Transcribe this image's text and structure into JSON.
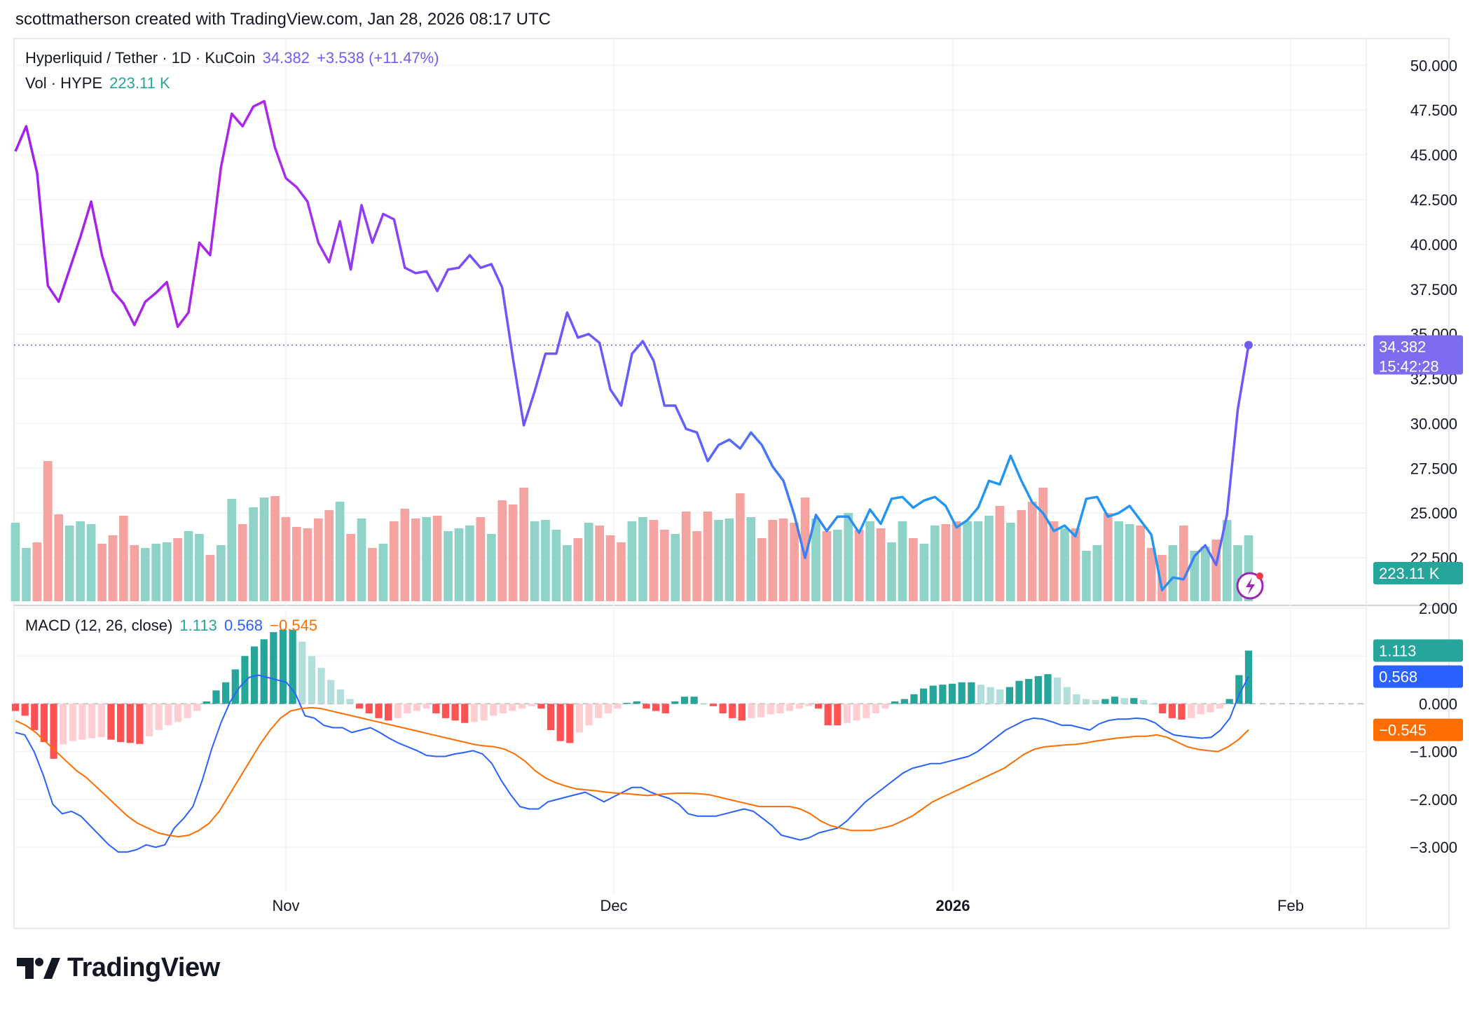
{
  "credit": "scottmatherson created with TradingView.com, Jan 28, 2026 08:17 UTC",
  "legend": {
    "symbol": "Hyperliquid / Tether · 1D · KuCoin",
    "price": "34.382",
    "change": "+3.538 (+11.47%)",
    "vol_label": "Vol · HYPE",
    "vol_value": "223.11 K",
    "macd_label": "MACD (12, 26, close)",
    "macd_hist": "1.113",
    "macd_line": "0.568",
    "macd_signal": "−0.545"
  },
  "price_tag": {
    "price": "34.382",
    "countdown": "15:42:28"
  },
  "vol_tag": "223.11 K",
  "macd_tags": {
    "hist": "1.113",
    "macd": "0.568",
    "signal": "−0.545"
  },
  "brand": "TradingView",
  "colors": {
    "price_up": "#2196F3",
    "price_purple": "#7B4DFF",
    "price_magenta": "#B026E8",
    "vol_up": "#8fd3c8",
    "vol_down": "#f5a3a0",
    "hist_up_strong": "#26a69a",
    "hist_up_weak": "#b2dfdb",
    "hist_down_strong": "#ff5252",
    "hist_down_weak": "#ffcdd2",
    "macd_line": "#2962ff",
    "signal_line": "#ff6d00",
    "last_price_tag": "#7b6cf0"
  },
  "chart_data": [
    {
      "type": "line",
      "title": "Hyperliquid / Tether · 1D · KuCoin",
      "ylim": [
        20,
        51.5
      ],
      "y_ticks": [
        "50.000",
        "47.500",
        "45.000",
        "42.500",
        "40.000",
        "37.500",
        "35.000",
        "32.500",
        "30.000",
        "27.500",
        "25.000",
        "22.500"
      ],
      "x_ticks": [
        "Nov",
        "Dec",
        "2026",
        "Feb"
      ],
      "series": [
        {
          "values": [
            45.2,
            46.6,
            44.0,
            37.7,
            36.8,
            38.6,
            40.4,
            42.4,
            39.4,
            37.4,
            36.7,
            35.5,
            36.8,
            37.3,
            37.9,
            35.4,
            36.2,
            40.1,
            39.4,
            44.3,
            47.3,
            46.6,
            47.7,
            48.0,
            45.4,
            43.7,
            43.2,
            42.4,
            40.1,
            39.0,
            41.3,
            38.6,
            42.2,
            40.1,
            41.7,
            41.4,
            38.7,
            38.4,
            38.5,
            37.4,
            38.6,
            38.7,
            39.4,
            38.7,
            38.9,
            37.6,
            33.6,
            29.9,
            31.8,
            33.9,
            33.9,
            36.2,
            34.8,
            35.0,
            34.5,
            31.9,
            31.0,
            33.9,
            34.6,
            33.5,
            31.0,
            31.0,
            29.7,
            29.5,
            27.9,
            28.8,
            29.1,
            28.6,
            29.5,
            28.8,
            27.6,
            26.8,
            24.9,
            22.5,
            24.9,
            24.0,
            24.8,
            24.8,
            23.9,
            25.2,
            24.4,
            25.8,
            25.9,
            25.3,
            25.7,
            25.9,
            25.4,
            24.2,
            24.6,
            25.3,
            26.8,
            26.6,
            28.2,
            26.8,
            25.6,
            25.0,
            24.0,
            24.3,
            23.7,
            25.8,
            25.9,
            24.8,
            25.0,
            25.4,
            24.6,
            23.8,
            20.7,
            21.4,
            21.3,
            22.6,
            23.2,
            22.1,
            24.9,
            30.8,
            34.382
          ]
        }
      ]
    },
    {
      "type": "bar",
      "title": "Vol · HYPE",
      "series": [
        {
          "name": "Vol · HYPE",
          "values": [
            0.56,
            0.38,
            0.42,
            1.0,
            0.62,
            0.54,
            0.57,
            0.55,
            0.41,
            0.47,
            0.61,
            0.4,
            0.38,
            0.41,
            0.42,
            0.45,
            0.5,
            0.48,
            0.33,
            0.4,
            0.73,
            0.55,
            0.67,
            0.74,
            0.75,
            0.6,
            0.53,
            0.52,
            0.59,
            0.65,
            0.71,
            0.48,
            0.59,
            0.38,
            0.41,
            0.57,
            0.66,
            0.59,
            0.6,
            0.61,
            0.5,
            0.52,
            0.54,
            0.6,
            0.48,
            0.72,
            0.69,
            0.81,
            0.57,
            0.58,
            0.51,
            0.4,
            0.45,
            0.56,
            0.54,
            0.47,
            0.42,
            0.57,
            0.6,
            0.58,
            0.51,
            0.48,
            0.64,
            0.5,
            0.64,
            0.58,
            0.59,
            0.77,
            0.6,
            0.45,
            0.58,
            0.59,
            0.56,
            0.74,
            0.59,
            0.5,
            0.51,
            0.63,
            0.51,
            0.57,
            0.52,
            0.42,
            0.57,
            0.45,
            0.41,
            0.54,
            0.55,
            0.57,
            0.57,
            0.57,
            0.61,
            0.68,
            0.56,
            0.65,
            0.71,
            0.81,
            0.57,
            0.52,
            0.52,
            0.36,
            0.4,
            0.63,
            0.57,
            0.55,
            0.54,
            0.38,
            0.33,
            0.4,
            0.54,
            0.36,
            0.39,
            0.44,
            0.58,
            0.4,
            0.47,
            0.62,
            0.64
          ]
        }
      ],
      "ylim": [
        0,
        1
      ]
    },
    {
      "type": "bar",
      "title": "MACD (12, 26, close)",
      "ylim": [
        -3.6,
        2.0
      ],
      "y_ticks": [
        "2.000",
        "1.000",
        "0.000",
        "−1.000",
        "−2.000",
        "−3.000"
      ],
      "series": [
        {
          "name": "Histogram",
          "values": [
            -0.15,
            -0.25,
            -0.55,
            -0.8,
            -1.15,
            -0.85,
            -0.78,
            -0.75,
            -0.72,
            -0.7,
            -0.75,
            -0.8,
            -0.82,
            -0.84,
            -0.68,
            -0.55,
            -0.45,
            -0.38,
            -0.3,
            -0.15,
            0.05,
            0.28,
            0.45,
            0.72,
            1.0,
            1.2,
            1.35,
            1.5,
            1.55,
            1.55,
            1.3,
            1.0,
            0.75,
            0.5,
            0.3,
            0.1,
            -0.1,
            -0.2,
            -0.3,
            -0.35,
            -0.3,
            -0.2,
            -0.15,
            -0.1,
            -0.2,
            -0.3,
            -0.35,
            -0.4,
            -0.38,
            -0.35,
            -0.25,
            -0.2,
            -0.15,
            -0.1,
            -0.05,
            -0.1,
            -0.55,
            -0.78,
            -0.82,
            -0.6,
            -0.45,
            -0.3,
            -0.2,
            -0.1,
            0.02,
            0.05,
            -0.1,
            -0.15,
            -0.2,
            0.05,
            0.15,
            0.15,
            0.0,
            -0.05,
            -0.2,
            -0.3,
            -0.35,
            -0.3,
            -0.28,
            -0.22,
            -0.2,
            -0.15,
            -0.1,
            -0.05,
            -0.1,
            -0.45,
            -0.45,
            -0.4,
            -0.35,
            -0.3,
            -0.2,
            -0.1,
            0.05,
            0.1,
            0.2,
            0.32,
            0.38,
            0.4,
            0.42,
            0.45,
            0.45,
            0.4,
            0.35,
            0.3,
            0.35,
            0.48,
            0.52,
            0.58,
            0.62,
            0.55,
            0.35,
            0.2,
            0.1,
            0.08,
            0.1,
            0.15,
            0.12,
            0.12,
            0.08,
            0.0,
            -0.2,
            -0.3,
            -0.33,
            -0.3,
            -0.22,
            -0.18,
            -0.1,
            0.1,
            0.6,
            1.113
          ]
        },
        {
          "name": "MACD",
          "values": [
            -0.6,
            -0.65,
            -1.0,
            -1.5,
            -2.1,
            -2.3,
            -2.25,
            -2.35,
            -2.55,
            -2.75,
            -2.95,
            -3.1,
            -3.1,
            -3.05,
            -2.95,
            -3.0,
            -2.95,
            -2.6,
            -2.4,
            -2.15,
            -1.6,
            -0.95,
            -0.4,
            0.05,
            0.35,
            0.55,
            0.6,
            0.55,
            0.5,
            0.45,
            0.2,
            -0.25,
            -0.3,
            -0.45,
            -0.5,
            -0.5,
            -0.6,
            -0.55,
            -0.5,
            -0.6,
            -0.72,
            -0.82,
            -0.9,
            -0.98,
            -1.08,
            -1.1,
            -1.1,
            -1.05,
            -1.02,
            -0.98,
            -1.05,
            -1.25,
            -1.6,
            -1.9,
            -2.15,
            -2.2,
            -2.2,
            -2.05,
            -2.0,
            -1.95,
            -1.9,
            -1.85,
            -1.95,
            -2.05,
            -1.95,
            -1.85,
            -1.75,
            -1.75,
            -1.85,
            -1.92,
            -1.98,
            -2.1,
            -2.3,
            -2.35,
            -2.35,
            -2.35,
            -2.3,
            -2.25,
            -2.2,
            -2.25,
            -2.4,
            -2.55,
            -2.75,
            -2.8,
            -2.85,
            -2.8,
            -2.7,
            -2.65,
            -2.6,
            -2.45,
            -2.25,
            -2.05,
            -1.9,
            -1.75,
            -1.6,
            -1.45,
            -1.35,
            -1.3,
            -1.25,
            -1.25,
            -1.2,
            -1.15,
            -1.1,
            -1.0,
            -0.85,
            -0.7,
            -0.55,
            -0.45,
            -0.35,
            -0.3,
            -0.32,
            -0.38,
            -0.45,
            -0.45,
            -0.5,
            -0.55,
            -0.42,
            -0.35,
            -0.32,
            -0.32,
            -0.3,
            -0.32,
            -0.4,
            -0.55,
            -0.65,
            -0.68,
            -0.7,
            -0.72,
            -0.7,
            -0.55,
            -0.3,
            0.2,
            0.568
          ]
        },
        {
          "name": "Signal",
          "values": [
            -0.35,
            -0.45,
            -0.6,
            -0.8,
            -1.0,
            -1.2,
            -1.4,
            -1.55,
            -1.75,
            -1.95,
            -2.15,
            -2.35,
            -2.5,
            -2.6,
            -2.7,
            -2.75,
            -2.78,
            -2.75,
            -2.65,
            -2.5,
            -2.25,
            -1.9,
            -1.55,
            -1.2,
            -0.85,
            -0.55,
            -0.3,
            -0.15,
            -0.1,
            -0.08,
            -0.1,
            -0.15,
            -0.2,
            -0.25,
            -0.3,
            -0.35,
            -0.4,
            -0.45,
            -0.5,
            -0.55,
            -0.6,
            -0.65,
            -0.7,
            -0.75,
            -0.8,
            -0.85,
            -0.88,
            -0.9,
            -0.95,
            -1.05,
            -1.2,
            -1.4,
            -1.55,
            -1.65,
            -1.72,
            -1.78,
            -1.8,
            -1.82,
            -1.85,
            -1.87,
            -1.88,
            -1.9,
            -1.92,
            -1.9,
            -1.88,
            -1.87,
            -1.87,
            -1.88,
            -1.9,
            -1.95,
            -2.0,
            -2.05,
            -2.1,
            -2.15,
            -2.15,
            -2.15,
            -2.15,
            -2.2,
            -2.3,
            -2.45,
            -2.55,
            -2.6,
            -2.65,
            -2.65,
            -2.65,
            -2.6,
            -2.55,
            -2.45,
            -2.35,
            -2.2,
            -2.05,
            -1.95,
            -1.85,
            -1.75,
            -1.65,
            -1.55,
            -1.45,
            -1.35,
            -1.2,
            -1.05,
            -0.95,
            -0.9,
            -0.88,
            -0.86,
            -0.85,
            -0.82,
            -0.78,
            -0.75,
            -0.72,
            -0.7,
            -0.68,
            -0.68,
            -0.65,
            -0.7,
            -0.8,
            -0.9,
            -0.95,
            -0.98,
            -1.0,
            -0.9,
            -0.75,
            -0.545
          ]
        }
      ]
    }
  ]
}
